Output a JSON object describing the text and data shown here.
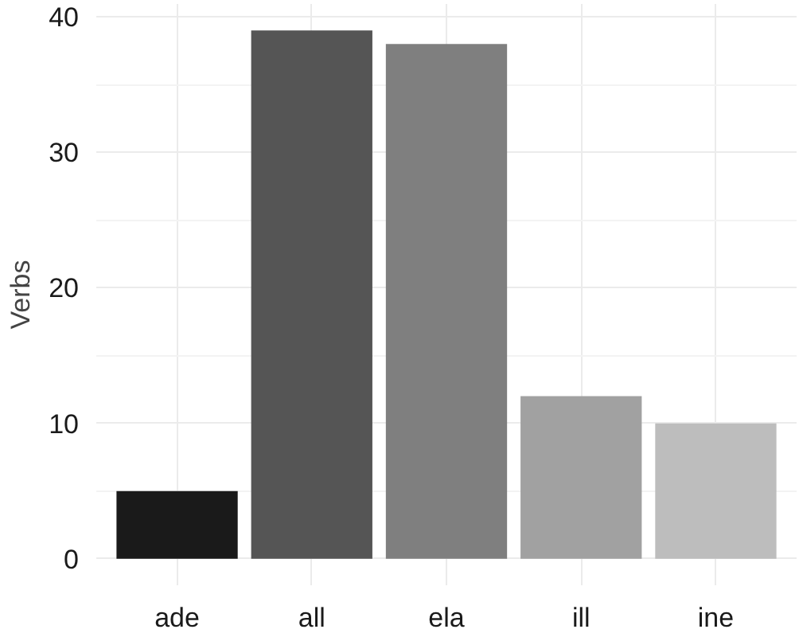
{
  "chart_data": {
    "type": "bar",
    "ylabel": "Verbs",
    "categories": [
      "ade",
      "all",
      "ela",
      "ill",
      "ine"
    ],
    "values": [
      5,
      39,
      38,
      12,
      10
    ],
    "colors": [
      "#1a1a1a",
      "#555555",
      "#7f7f7f",
      "#a1a1a1",
      "#bdbdbd"
    ],
    "ylim": [
      -1.95,
      40.95
    ],
    "yticks": [
      0,
      10,
      20,
      30,
      40
    ],
    "grid": true
  }
}
